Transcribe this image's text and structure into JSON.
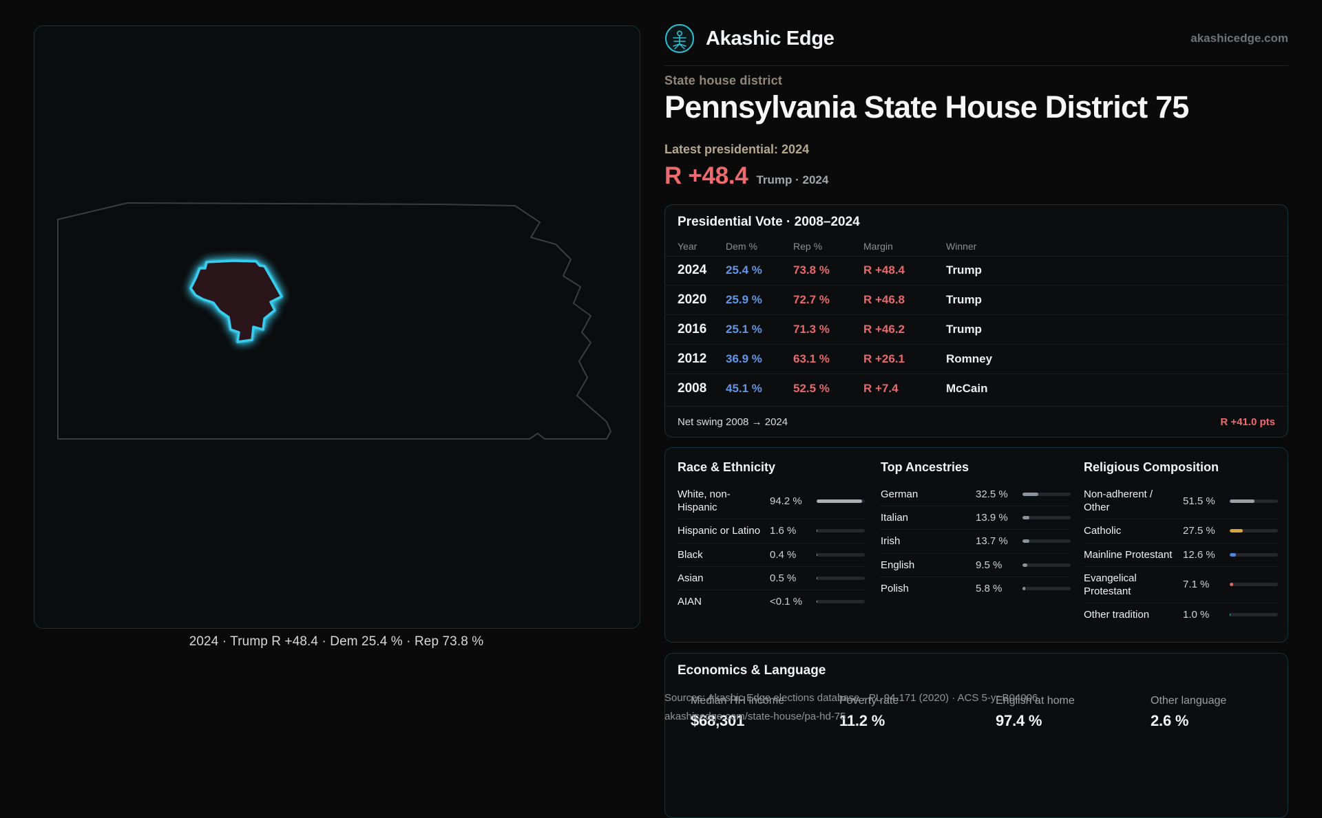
{
  "colors": {
    "accent": "#2fc0d4",
    "dem": "#6097e6",
    "rep": "#e8696c",
    "margin": "#ef6a6e",
    "district": "#38cdee"
  },
  "brand": {
    "name": "Akashic Edge",
    "domain": "akashicedge.com"
  },
  "hero": {
    "kicker": "State house district",
    "title": "Pennsylvania State House District 75",
    "latest_label": "Latest presidential: 2024",
    "margin": "R +48.4",
    "margin_context": "Trump · 2024"
  },
  "map": {
    "caption": "2024 · Trump R +48.4 · Dem 25.4 % · Rep 73.8 %",
    "district_color": "#38cdee"
  },
  "presidential": {
    "title": "Presidential Vote · 2008–2024",
    "columns": [
      "Year",
      "Dem %",
      "Rep %",
      "Margin",
      "Winner"
    ],
    "rows": [
      [
        "2024",
        "25.4 %",
        "73.8 %",
        "R +48.4",
        "Trump"
      ],
      [
        "2020",
        "25.9 %",
        "72.7 %",
        "R +46.8",
        "Trump"
      ],
      [
        "2016",
        "25.1 %",
        "71.3 %",
        "R +46.2",
        "Trump"
      ],
      [
        "2012",
        "36.9 %",
        "63.1 %",
        "R +26.1",
        "Romney"
      ],
      [
        "2008",
        "45.1 %",
        "52.5 %",
        "R +7.4",
        "McCain"
      ]
    ],
    "net_swing_label": "Net swing 2008 → 2024",
    "net_swing_value": "R +41.0 pts"
  },
  "demographics": {
    "race": {
      "title": "Race & Ethnicity",
      "bar_color": "#a9b0ba",
      "rows": [
        {
          "label": "White, non-Hispanic",
          "value": "94.2 %",
          "pct": 94.2
        },
        {
          "label": "Hispanic or Latino",
          "value": "1.6 %",
          "pct": 1.6
        },
        {
          "label": "Black",
          "value": "0.4 %",
          "pct": 0.4
        },
        {
          "label": "Asian",
          "value": "0.5 %",
          "pct": 0.5
        },
        {
          "label": "AIAN",
          "value": "<0.1 %",
          "pct": 0.05
        }
      ]
    },
    "ancestries": {
      "title": "Top Ancestries",
      "bar_color": "#8d939c",
      "rows": [
        {
          "label": "German",
          "value": "32.5 %",
          "pct": 32.5
        },
        {
          "label": "Italian",
          "value": "13.9 %",
          "pct": 13.9
        },
        {
          "label": "Irish",
          "value": "13.7 %",
          "pct": 13.7
        },
        {
          "label": "English",
          "value": "9.5 %",
          "pct": 9.5
        },
        {
          "label": "Polish",
          "value": "5.8 %",
          "pct": 5.8
        }
      ]
    },
    "religion": {
      "title": "Religious Composition",
      "bar_color": "#9aa0a8",
      "rows": [
        {
          "label": "Non-adherent / Other",
          "value": "51.5 %",
          "pct": 51.5,
          "color": "#9aa0a8"
        },
        {
          "label": "Catholic",
          "value": "27.5 %",
          "pct": 27.5,
          "color": "#d9a43b"
        },
        {
          "label": "Mainline Protestant",
          "value": "12.6 %",
          "pct": 12.6,
          "color": "#5584da"
        },
        {
          "label": "Evangelical Protestant",
          "value": "7.1 %",
          "pct": 7.1,
          "color": "#e06a6a"
        },
        {
          "label": "Other tradition",
          "value": "1.0 %",
          "pct": 1.0,
          "color": "#45c8d1"
        }
      ]
    }
  },
  "economics": {
    "title": "Economics & Language",
    "stats": [
      {
        "label": "Median HH income",
        "value": "$68,301"
      },
      {
        "label": "Poverty rate",
        "value": "11.2 %"
      },
      {
        "label": "English at home",
        "value": "97.4 %"
      },
      {
        "label": "Other language",
        "value": "2.6 %"
      }
    ]
  },
  "footer": {
    "sources": "Sources: Akashic Edge elections database · PL 94-171 (2020) · ACS 5-yr B04006",
    "permalink": "akashicedge.com/state-house/pa-hd-75"
  }
}
